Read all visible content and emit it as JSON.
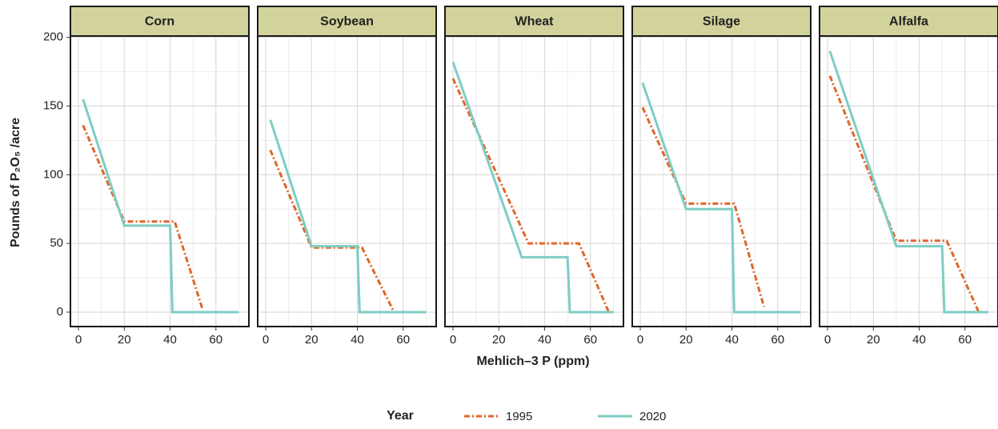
{
  "y_label": "Pounds of P₂O₅ /acre",
  "x_label": "Mehlich–3 P (ppm)",
  "legend_title": "Year",
  "chart_data": [
    {
      "type": "line",
      "title": "Corn",
      "xlim": [
        -3.5,
        74.4
      ],
      "ylim": [
        -10.5,
        201
      ],
      "xticks": [
        0,
        20,
        40,
        60
      ],
      "yticks": [
        0,
        50,
        100,
        150,
        200
      ],
      "grid": true,
      "series": [
        {
          "name": "1995",
          "color": "#e0662a",
          "style": "dashdot",
          "x": [
            2,
            20,
            42,
            54
          ],
          "values": [
            136,
            66,
            66,
            3
          ]
        },
        {
          "name": "2020",
          "color": "#7ecdc4",
          "style": "solid",
          "x": [
            2,
            20,
            40,
            41,
            70
          ],
          "values": [
            155,
            63,
            63,
            0,
            0
          ]
        }
      ]
    },
    {
      "type": "line",
      "title": "Soybean",
      "xlim": [
        -3.5,
        74.4
      ],
      "ylim": [
        -10.5,
        201
      ],
      "xticks": [
        0,
        20,
        40,
        60
      ],
      "yticks": [
        0,
        50,
        100,
        150,
        200
      ],
      "grid": true,
      "series": [
        {
          "name": "1995",
          "color": "#e0662a",
          "style": "dashdot",
          "x": [
            2,
            20,
            42,
            56
          ],
          "values": [
            118,
            47,
            47,
            0
          ]
        },
        {
          "name": "2020",
          "color": "#7ecdc4",
          "style": "solid",
          "x": [
            2,
            20,
            40,
            41,
            70
          ],
          "values": [
            140,
            48,
            48,
            0,
            0
          ]
        }
      ]
    },
    {
      "type": "line",
      "title": "Wheat",
      "xlim": [
        -3.5,
        74.4
      ],
      "ylim": [
        -10.5,
        201
      ],
      "xticks": [
        0,
        20,
        40,
        60
      ],
      "yticks": [
        0,
        50,
        100,
        150,
        200
      ],
      "grid": true,
      "series": [
        {
          "name": "1995",
          "color": "#e0662a",
          "style": "dashdot",
          "x": [
            0,
            33,
            55,
            68
          ],
          "values": [
            170,
            50,
            50,
            0
          ]
        },
        {
          "name": "2020",
          "color": "#7ecdc4",
          "style": "solid",
          "x": [
            0,
            30,
            50,
            51,
            70
          ],
          "values": [
            182,
            40,
            40,
            0,
            0
          ]
        }
      ]
    },
    {
      "type": "line",
      "title": "Silage",
      "xlim": [
        -3.5,
        74.4
      ],
      "ylim": [
        -10.5,
        201
      ],
      "xticks": [
        0,
        20,
        40,
        60
      ],
      "yticks": [
        0,
        50,
        100,
        150,
        200
      ],
      "grid": true,
      "series": [
        {
          "name": "1995",
          "color": "#e0662a",
          "style": "dashdot",
          "x": [
            1,
            20,
            41,
            54
          ],
          "values": [
            149,
            79,
            79,
            4
          ]
        },
        {
          "name": "2020",
          "color": "#7ecdc4",
          "style": "solid",
          "x": [
            1,
            20,
            40,
            41,
            70
          ],
          "values": [
            167,
            75,
            75,
            0,
            0
          ]
        }
      ]
    },
    {
      "type": "line",
      "title": "Alfalfa",
      "xlim": [
        -3.5,
        74.4
      ],
      "ylim": [
        -10.5,
        201
      ],
      "xticks": [
        0,
        20,
        40,
        60
      ],
      "yticks": [
        0,
        50,
        100,
        150,
        200
      ],
      "grid": true,
      "series": [
        {
          "name": "1995",
          "color": "#e0662a",
          "style": "dashdot",
          "x": [
            1,
            30,
            52,
            66
          ],
          "values": [
            172,
            52,
            52,
            0
          ]
        },
        {
          "name": "2020",
          "color": "#7ecdc4",
          "style": "solid",
          "x": [
            1,
            30,
            50,
            51,
            70
          ],
          "values": [
            190,
            48,
            48,
            0,
            0
          ]
        }
      ]
    }
  ]
}
